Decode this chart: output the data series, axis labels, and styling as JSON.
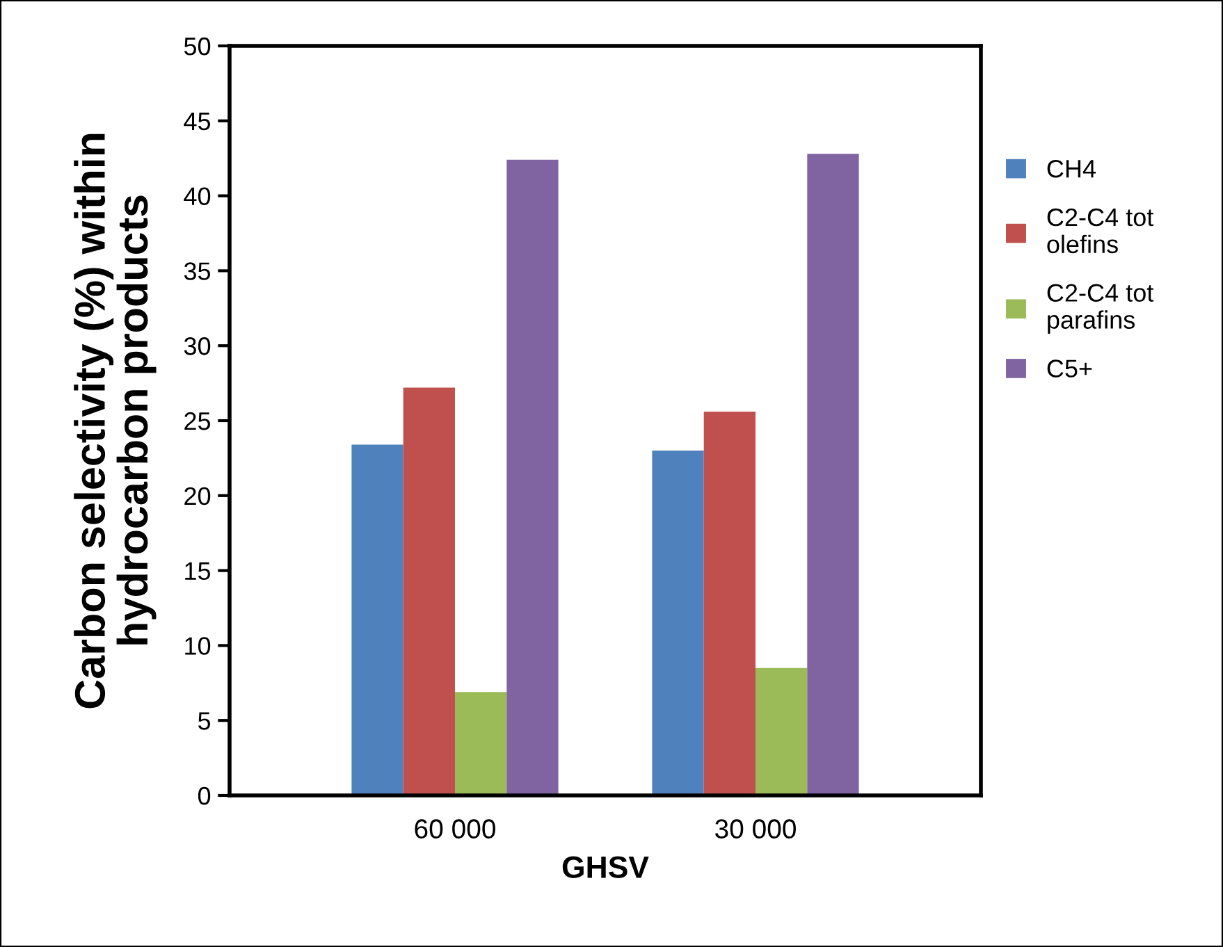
{
  "chart_data": {
    "type": "bar",
    "xlabel": "GHSV",
    "ylabel": "Carbon selectivity (%) within\nhydrocarbon products",
    "categories": [
      "60 000",
      "30 000"
    ],
    "series": [
      {
        "name": "CH4",
        "color": "#4f81bd",
        "values": [
          23.4,
          23.0
        ]
      },
      {
        "name": "C2-C4 tot\nolefins",
        "color": "#c0504d",
        "values": [
          27.2,
          25.6
        ]
      },
      {
        "name": "C2-C4 tot\nparafins",
        "color": "#9bbb59",
        "values": [
          6.9,
          8.5
        ]
      },
      {
        "name": "C5+",
        "color": "#8064a2",
        "values": [
          42.4,
          42.8
        ]
      }
    ],
    "ylim": [
      0,
      50
    ],
    "yticks": [
      0,
      5,
      10,
      15,
      20,
      25,
      30,
      35,
      40,
      45,
      50
    ],
    "grid": false,
    "legend": "right"
  }
}
